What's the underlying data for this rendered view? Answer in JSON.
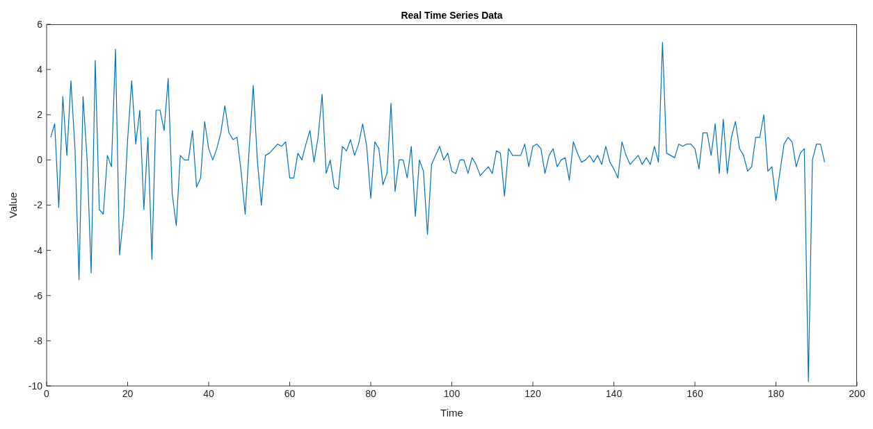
{
  "chart_data": {
    "type": "line",
    "title": "Real Time Series Data",
    "xlabel": "Time",
    "ylabel": "Value",
    "x": [
      1,
      2,
      3,
      4,
      5,
      6,
      7,
      8,
      9,
      10,
      11,
      12,
      13,
      14,
      15,
      16,
      17,
      18,
      19,
      20,
      21,
      22,
      23,
      24,
      25,
      26,
      27,
      28,
      29,
      30,
      31,
      32,
      33,
      34,
      35,
      36,
      37,
      38,
      39,
      40,
      41,
      42,
      43,
      44,
      45,
      46,
      47,
      48,
      49,
      50,
      51,
      52,
      53,
      54,
      55,
      56,
      57,
      58,
      59,
      60,
      61,
      62,
      63,
      64,
      65,
      66,
      67,
      68,
      69,
      70,
      71,
      72,
      73,
      74,
      75,
      76,
      77,
      78,
      79,
      80,
      81,
      82,
      83,
      84,
      85,
      86,
      87,
      88,
      89,
      90,
      91,
      92,
      93,
      94,
      95,
      96,
      97,
      98,
      99,
      100,
      101,
      102,
      103,
      104,
      105,
      106,
      107,
      108,
      109,
      110,
      111,
      112,
      113,
      114,
      115,
      116,
      117,
      118,
      119,
      120,
      121,
      122,
      123,
      124,
      125,
      126,
      127,
      128,
      129,
      130,
      131,
      132,
      133,
      134,
      135,
      136,
      137,
      138,
      139,
      140,
      141,
      142,
      143,
      144,
      145,
      146,
      147,
      148,
      149,
      150,
      151,
      152,
      153,
      154,
      155,
      156,
      157,
      158,
      159,
      160,
      161,
      162,
      163,
      164,
      165,
      166,
      167,
      168,
      169,
      170,
      171,
      172,
      173,
      174,
      175,
      176,
      177,
      178,
      179,
      180,
      181,
      182,
      183,
      184,
      185,
      186,
      187,
      188,
      189,
      190,
      191,
      192
    ],
    "series": [
      {
        "color": "#0072bd",
        "values": [
          1.0,
          1.6,
          -2.1,
          2.8,
          0.2,
          3.5,
          0.5,
          -5.3,
          2.8,
          0,
          -5.0,
          4.4,
          -2.2,
          -2.4,
          0.2,
          -0.3,
          4.9,
          -4.2,
          -2.5,
          0.9,
          3.5,
          0.7,
          2.2,
          -2.2,
          1.0,
          -4.4,
          2.2,
          2.2,
          1.3,
          3.6,
          -1.5,
          -2.9,
          0.2,
          0,
          0,
          1.3,
          -1.2,
          -0.8,
          1.7,
          0.5,
          0,
          0.5,
          1.2,
          2.4,
          1.2,
          0.9,
          1.0,
          -0.5,
          -2.4,
          0.5,
          3.3,
          0,
          -2.0,
          0.2,
          0.3,
          0.5,
          0.7,
          0.6,
          0.8,
          -0.8,
          -0.8,
          0.3,
          0,
          0.7,
          1.3,
          -0.1,
          1.0,
          2.9,
          -0.6,
          0,
          -1.2,
          -1.3,
          0.6,
          0.4,
          0.9,
          0.2,
          0.7,
          1.6,
          0.6,
          -1.7,
          0.8,
          0.5,
          -1.1,
          -0.6,
          2.5,
          -1.4,
          0,
          0,
          -0.8,
          0.6,
          -2.5,
          0,
          -0.5,
          -3.3,
          -0.2,
          0.2,
          0.6,
          0,
          0.3,
          -0.5,
          -0.6,
          0,
          0,
          -0.6,
          0.1,
          -0.2,
          -0.7,
          -0.5,
          -0.3,
          -0.6,
          0.4,
          0.3,
          -1.6,
          0.5,
          0.2,
          0.2,
          0.2,
          0.7,
          -0.3,
          0.6,
          0.7,
          0.5,
          -0.6,
          0.2,
          0.5,
          -0.3,
          0,
          0.1,
          -0.9,
          0.8,
          0.3,
          -0.1,
          0,
          0.2,
          -0.1,
          0.2,
          -0.2,
          0.6,
          -0.1,
          -0.4,
          -0.8,
          0.8,
          0.2,
          -0.2,
          0,
          0.2,
          -0.2,
          0.1,
          -0.2,
          0.6,
          -0.1,
          5.2,
          0.3,
          0.2,
          0.1,
          0.7,
          0.6,
          0.7,
          0.7,
          0.5,
          -0.4,
          1.2,
          1.2,
          0.2,
          1.6,
          -0.6,
          1.8,
          -0.6,
          1.0,
          1.7,
          0.5,
          0.2,
          -0.5,
          -0.3,
          1.0,
          1.0,
          2.0,
          -0.5,
          -0.3,
          -1.8,
          -0.5,
          0.7,
          1.0,
          0.8,
          -0.3,
          0.3,
          0.5,
          -9.8,
          0,
          0.7,
          0.7,
          -0.1
        ]
      }
    ],
    "xlim": [
      0,
      200
    ],
    "xticks": [
      0,
      20,
      40,
      60,
      80,
      100,
      120,
      140,
      160,
      180,
      200
    ],
    "ylim": [
      -10,
      6
    ],
    "yticks": [
      -10,
      -8,
      -6,
      -4,
      -2,
      0,
      2,
      4,
      6
    ],
    "grid": false,
    "legend": false,
    "marker": "none",
    "line_style": "solid"
  }
}
